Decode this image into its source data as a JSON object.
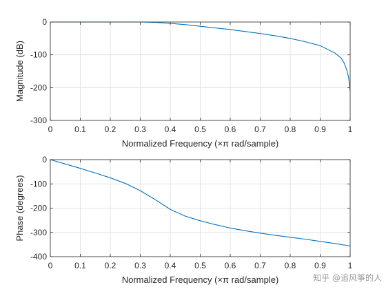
{
  "chart_data": [
    {
      "type": "line",
      "xlabel": "Normalized Frequency  (×π rad/sample)",
      "ylabel": "Magnitude (dB)",
      "xlim": [
        0,
        1
      ],
      "ylim": [
        -300,
        0
      ],
      "x_ticks": [
        "0",
        "0.1",
        "0.2",
        "0.3",
        "0.4",
        "0.5",
        "0.6",
        "0.7",
        "0.8",
        "0.9",
        "1"
      ],
      "y_ticks": [
        "0",
        "-100",
        "-200",
        "-300"
      ],
      "grid": true,
      "series": [
        {
          "color": "#0072bd",
          "points": [
            [
              0,
              0
            ],
            [
              0.1,
              0
            ],
            [
              0.2,
              0
            ],
            [
              0.3,
              0
            ],
            [
              0.35,
              -1
            ],
            [
              0.4,
              -4
            ],
            [
              0.45,
              -8
            ],
            [
              0.5,
              -13
            ],
            [
              0.55,
              -18
            ],
            [
              0.6,
              -23
            ],
            [
              0.65,
              -29
            ],
            [
              0.7,
              -35
            ],
            [
              0.75,
              -42
            ],
            [
              0.8,
              -50
            ],
            [
              0.85,
              -60
            ],
            [
              0.9,
              -72
            ],
            [
              0.95,
              -95
            ],
            [
              0.97,
              -110
            ],
            [
              0.98,
              -125
            ],
            [
              0.99,
              -150
            ],
            [
              0.995,
              -170
            ],
            [
              1.0,
              -210
            ]
          ]
        }
      ]
    },
    {
      "type": "line",
      "xlabel": "Normalized Frequency  (×π rad/sample)",
      "ylabel": "Phase (degrees)",
      "xlim": [
        0,
        1
      ],
      "ylim": [
        -400,
        0
      ],
      "x_ticks": [
        "0",
        "0.1",
        "0.2",
        "0.3",
        "0.4",
        "0.5",
        "0.6",
        "0.7",
        "0.8",
        "0.9",
        "1"
      ],
      "y_ticks": [
        "0",
        "-100",
        "-200",
        "-300",
        "-400"
      ],
      "grid": true,
      "series": [
        {
          "color": "#0072bd",
          "points": [
            [
              0,
              0
            ],
            [
              0.05,
              -18
            ],
            [
              0.1,
              -36
            ],
            [
              0.15,
              -55
            ],
            [
              0.2,
              -75
            ],
            [
              0.25,
              -98
            ],
            [
              0.3,
              -128
            ],
            [
              0.35,
              -165
            ],
            [
              0.4,
              -205
            ],
            [
              0.45,
              -233
            ],
            [
              0.5,
              -252
            ],
            [
              0.55,
              -268
            ],
            [
              0.6,
              -282
            ],
            [
              0.65,
              -293
            ],
            [
              0.7,
              -303
            ],
            [
              0.75,
              -312
            ],
            [
              0.8,
              -320
            ],
            [
              0.85,
              -328
            ],
            [
              0.9,
              -337
            ],
            [
              0.95,
              -346
            ],
            [
              1.0,
              -356
            ]
          ]
        }
      ]
    }
  ],
  "watermark": "知乎 @追风筝的人"
}
